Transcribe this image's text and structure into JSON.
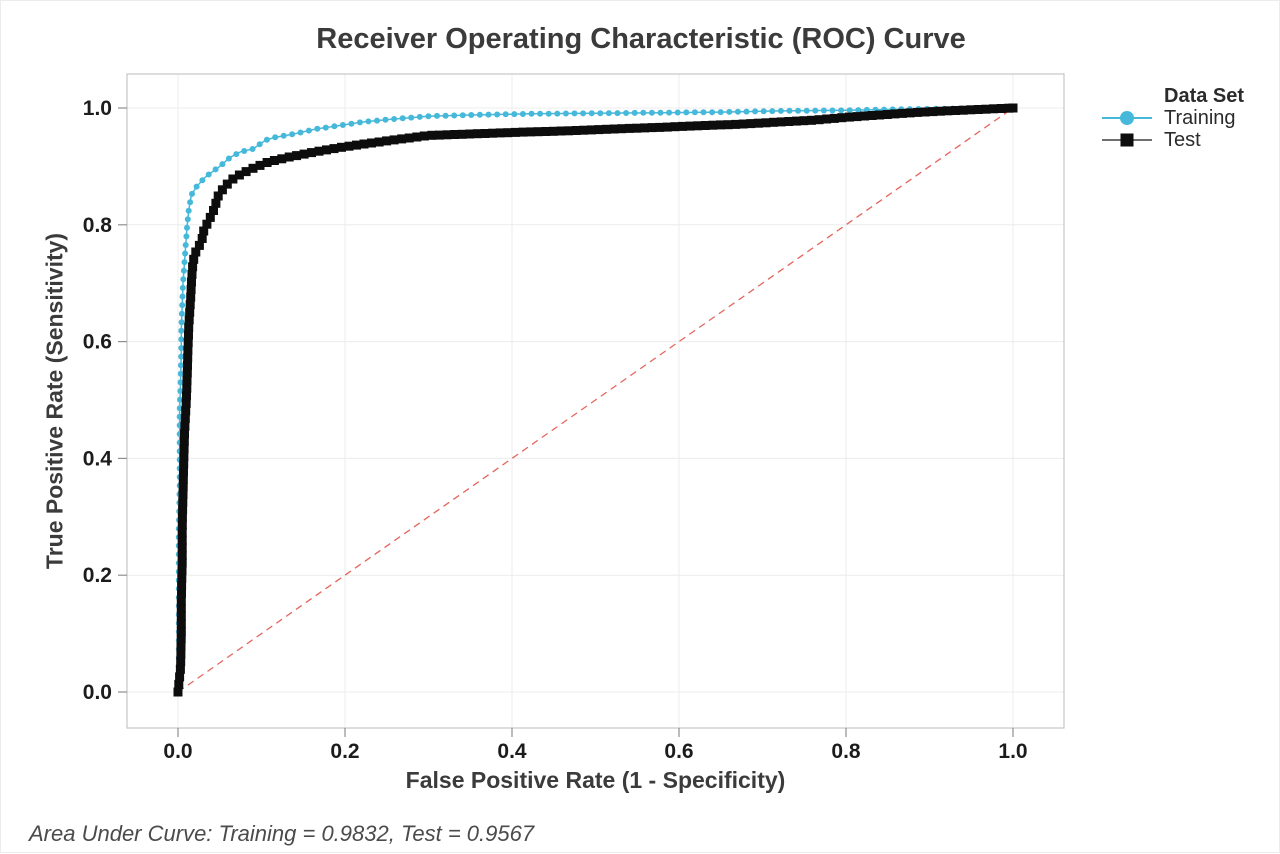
{
  "chart_data": {
    "type": "line",
    "title": "Receiver Operating Characteristic (ROC) Curve",
    "xlabel": "False Positive Rate (1 - Specificity)",
    "ylabel": "True Positive Rate (Sensitivity)",
    "xlim": [
      0,
      1
    ],
    "ylim": [
      0,
      1
    ],
    "xticks": [
      0,
      0.2,
      0.4,
      0.6,
      0.8,
      1
    ],
    "xtick_labels": [
      "0.0",
      "0.2",
      "0.4",
      "0.6",
      "0.8",
      "1.0"
    ],
    "yticks": [
      0,
      0.2,
      0.4,
      0.6,
      0.8,
      1
    ],
    "ytick_labels": [
      "0.0",
      "0.2",
      "0.4",
      "0.6",
      "0.8",
      "1.0"
    ],
    "grid": true,
    "legend": {
      "title": "Data Set",
      "position": "top-right"
    },
    "reference_line": {
      "name": "chance-diagonal",
      "style": "dashed",
      "color": "#e2564d",
      "from": [
        0,
        0
      ],
      "to": [
        1,
        1
      ]
    },
    "annotation": "Area Under Curve: Training = 0.9832, Test = 0.9567",
    "auc": {
      "Training": 0.9832,
      "Test": 0.9567
    },
    "series": [
      {
        "name": "Training",
        "color": "#46b8da",
        "line_color": "#46b8da",
        "marker": "circle",
        "points": [
          [
            0,
            0
          ],
          [
            0.001,
            0.05
          ],
          [
            0.001,
            0.12
          ],
          [
            0.001,
            0.2
          ],
          [
            0.001,
            0.28
          ],
          [
            0.002,
            0.35
          ],
          [
            0.002,
            0.42
          ],
          [
            0.002,
            0.48
          ],
          [
            0.003,
            0.53
          ],
          [
            0.004,
            0.58
          ],
          [
            0.004,
            0.62
          ],
          [
            0.005,
            0.66
          ],
          [
            0.006,
            0.7
          ],
          [
            0.008,
            0.74
          ],
          [
            0.01,
            0.78
          ],
          [
            0.011,
            0.8
          ],
          [
            0.013,
            0.827
          ],
          [
            0.016,
            0.851
          ],
          [
            0.022,
            0.865
          ],
          [
            0.033,
            0.882
          ],
          [
            0.049,
            0.899
          ],
          [
            0.063,
            0.916
          ],
          [
            0.075,
            0.925
          ],
          [
            0.09,
            0.93
          ],
          [
            0.105,
            0.945
          ],
          [
            0.117,
            0.95
          ],
          [
            0.137,
            0.955
          ],
          [
            0.165,
            0.964
          ],
          [
            0.189,
            0.969
          ],
          [
            0.221,
            0.976
          ],
          [
            0.257,
            0.981
          ],
          [
            0.3,
            0.986
          ],
          [
            0.35,
            0.988
          ],
          [
            0.42,
            0.99
          ],
          [
            0.5,
            0.991
          ],
          [
            0.58,
            0.992
          ],
          [
            0.65,
            0.993
          ],
          [
            0.72,
            0.995
          ],
          [
            0.8,
            0.996
          ],
          [
            0.87,
            0.998
          ],
          [
            0.93,
            0.999
          ],
          [
            1,
            1
          ]
        ]
      },
      {
        "name": "Test",
        "color": "#0d0d0d",
        "line_color": "#6f6f6f",
        "marker": "square",
        "points": [
          [
            0,
            0
          ],
          [
            0.003,
            0.04
          ],
          [
            0.004,
            0.1
          ],
          [
            0.004,
            0.16
          ],
          [
            0.005,
            0.22
          ],
          [
            0.005,
            0.28
          ],
          [
            0.006,
            0.34
          ],
          [
            0.007,
            0.4
          ],
          [
            0.008,
            0.45
          ],
          [
            0.01,
            0.5
          ],
          [
            0.011,
            0.54
          ],
          [
            0.012,
            0.59
          ],
          [
            0.013,
            0.63
          ],
          [
            0.015,
            0.67
          ],
          [
            0.016,
            0.7
          ],
          [
            0.018,
            0.737
          ],
          [
            0.022,
            0.757
          ],
          [
            0.028,
            0.77
          ],
          [
            0.031,
            0.791
          ],
          [
            0.036,
            0.805
          ],
          [
            0.042,
            0.822
          ],
          [
            0.049,
            0.853
          ],
          [
            0.061,
            0.873
          ],
          [
            0.069,
            0.882
          ],
          [
            0.087,
            0.895
          ],
          [
            0.109,
            0.908
          ],
          [
            0.133,
            0.916
          ],
          [
            0.165,
            0.925
          ],
          [
            0.197,
            0.933
          ],
          [
            0.221,
            0.938
          ],
          [
            0.257,
            0.945
          ],
          [
            0.3,
            0.953
          ],
          [
            0.36,
            0.956
          ],
          [
            0.42,
            0.959
          ],
          [
            0.47,
            0.961
          ],
          [
            0.52,
            0.964
          ],
          [
            0.58,
            0.967
          ],
          [
            0.63,
            0.97
          ],
          [
            0.67,
            0.972
          ],
          [
            0.72,
            0.976
          ],
          [
            0.76,
            0.979
          ],
          [
            0.8,
            0.984
          ],
          [
            0.84,
            0.988
          ],
          [
            0.88,
            0.992
          ],
          [
            0.92,
            0.995
          ],
          [
            1,
            1
          ]
        ]
      }
    ]
  }
}
